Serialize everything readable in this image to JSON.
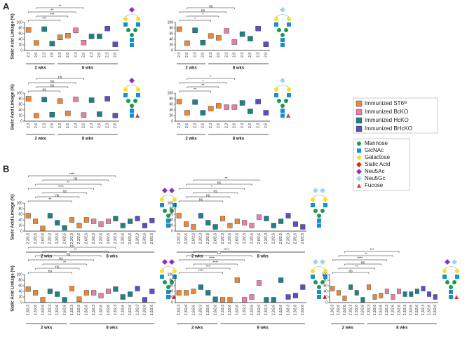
{
  "panel_labels": [
    "A",
    "B"
  ],
  "legend": [
    {
      "name": "Immunized ST6ᴳ",
      "color": "#e8883a"
    },
    {
      "name": "Immunized BcKO",
      "color": "#e67fa8"
    },
    {
      "name": "Immunized HcKO",
      "color": "#1f8087"
    },
    {
      "name": "Immunized BHcKO",
      "color": "#5a4fc2"
    }
  ],
  "glycan_legend": [
    {
      "name": "Mannose",
      "color": "#1a9a4a",
      "shape": "circle"
    },
    {
      "name": "GlcNAc",
      "color": "#1a8fd0",
      "shape": "square"
    },
    {
      "name": "Galactose",
      "color": "#f5e31a",
      "shape": "circle"
    },
    {
      "name": "Sialic Acid",
      "color": "#c0392b",
      "shape": "diamond"
    },
    {
      "name": "Neu5Ac",
      "color": "#8e2fc4",
      "shape": "diamond"
    },
    {
      "name": "Neu5Gc",
      "color": "#9fd4ee",
      "shape": "diamond"
    },
    {
      "name": "Fucose",
      "color": "#d63a3a",
      "shape": "triangle"
    }
  ],
  "chart_data": [
    {
      "type": "box",
      "ylabel": "Sialic Acid Linkage (%)",
      "group_labels": [
        "2 wks",
        "8 wks"
      ],
      "categories": [
        "2,3",
        "2,6",
        "2,3",
        "2,6",
        "2,3",
        "2,6",
        "2,3",
        "2,6",
        "2,3",
        "2,6",
        "2,3",
        "2,6"
      ],
      "colors": [
        "#e8883a",
        "#e8883a",
        "#1f8087",
        "#1f8087",
        "#e8883a",
        "#e8883a",
        "#e67fa8",
        "#e67fa8",
        "#1f8087",
        "#1f8087",
        "#5a4fc2",
        "#5a4fc2"
      ],
      "values": [
        73,
        27,
        76,
        24,
        47,
        53,
        72,
        28,
        50,
        50,
        78,
        22
      ],
      "comparisons": [
        "**",
        "**",
        "***",
        "***"
      ],
      "ylim": [
        0,
        100
      ],
      "yticks": [
        0,
        20,
        40,
        60,
        80,
        100
      ]
    },
    {
      "type": "box",
      "group_labels": [
        "2 wks",
        "8 wks"
      ],
      "categories": [
        "2,3",
        "2,6",
        "2,3",
        "2,6",
        "2,3",
        "2,6",
        "2,3",
        "2,6",
        "2,3",
        "2,6",
        "2,3",
        "2,6"
      ],
      "colors": [
        "#e8883a",
        "#e8883a",
        "#1f8087",
        "#1f8087",
        "#e8883a",
        "#e8883a",
        "#e67fa8",
        "#e67fa8",
        "#1f8087",
        "#1f8087",
        "#5a4fc2",
        "#5a4fc2"
      ],
      "values": [
        76,
        26,
        72,
        28,
        52,
        45,
        70,
        30,
        58,
        42,
        78,
        22
      ],
      "comparisons": [
        "ns",
        "ns",
        "*",
        "*"
      ],
      "ylim": [
        0,
        100
      ],
      "yticks": [
        0,
        20,
        40,
        60,
        80,
        100
      ]
    },
    {
      "type": "box",
      "ylabel": "Sialic Acid Linkage (%)",
      "group_labels": [
        "2 wks",
        "8 wks"
      ],
      "categories": [
        "2,3",
        "2,6",
        "2,3",
        "2,6",
        "2,3",
        "2,6",
        "2,3",
        "2,6",
        "2,3",
        "2,6",
        "2,3",
        "2,6"
      ],
      "colors": [
        "#e8883a",
        "#e8883a",
        "#1f8087",
        "#1f8087",
        "#e8883a",
        "#e8883a",
        "#e67fa8",
        "#e67fa8",
        "#1f8087",
        "#1f8087",
        "#5a4fc2",
        "#5a4fc2"
      ],
      "values": [
        80,
        20,
        77,
        23,
        72,
        28,
        78,
        22,
        75,
        25,
        80,
        20
      ],
      "comparisons": [
        "ns",
        "ns",
        "ns",
        "ns"
      ],
      "ylim": [
        0,
        100
      ],
      "yticks": [
        0,
        20,
        40,
        60,
        80,
        100
      ]
    },
    {
      "type": "box",
      "group_labels": [
        "2 wks",
        "8 wks"
      ],
      "categories": [
        "2,3",
        "2,6",
        "2,3",
        "2,6",
        "2,3",
        "2,6",
        "2,3",
        "2,6",
        "2,3",
        "2,6",
        "2,3",
        "2,6"
      ],
      "colors": [
        "#e8883a",
        "#e8883a",
        "#1f8087",
        "#1f8087",
        "#e8883a",
        "#e8883a",
        "#e67fa8",
        "#e67fa8",
        "#1f8087",
        "#1f8087",
        "#5a4fc2",
        "#5a4fc2"
      ],
      "values": [
        70,
        30,
        68,
        30,
        45,
        55,
        50,
        50,
        65,
        35,
        70,
        30
      ],
      "comparisons": [
        "*",
        "*",
        "**",
        "**"
      ],
      "ylim": [
        0,
        100
      ],
      "yticks": [
        0,
        20,
        40,
        60,
        80,
        100
      ]
    },
    {
      "type": "box",
      "ylabel": "Sialic Acid Linkage (%)",
      "group_labels": [
        "2 wks",
        "8 wks"
      ],
      "categories": [
        "2,3/2,3",
        "2,3/2,6",
        "2,6/2,6",
        "2,3/2,3",
        "2,3/2,6",
        "2,6/2,6",
        "2,3/2,3",
        "2,3/2,6",
        "2,6/2,6",
        "2,3/2,3",
        "2,3/2,6",
        "2,6/2,6",
        "2,3/2,3",
        "2,3/2,6",
        "2,6/2,6",
        "2,3/2,3",
        "2,3/2,6",
        "2,6/2,6"
      ],
      "colors": [
        "#e8883a",
        "#e8883a",
        "#e8883a",
        "#1f8087",
        "#1f8087",
        "#1f8087",
        "#e8883a",
        "#e8883a",
        "#e8883a",
        "#e67fa8",
        "#e67fa8",
        "#e67fa8",
        "#1f8087",
        "#1f8087",
        "#1f8087",
        "#5a4fc2",
        "#5a4fc2",
        "#5a4fc2"
      ],
      "values": [
        55,
        35,
        10,
        55,
        30,
        12,
        40,
        20,
        40,
        35,
        25,
        35,
        45,
        20,
        35,
        45,
        20,
        38
      ],
      "comparisons": [
        "****",
        "ns",
        "**",
        "****",
        "ns",
        "ns",
        "**"
      ],
      "ylim": [
        0,
        100
      ],
      "yticks": [
        0,
        20,
        40,
        60,
        80,
        100
      ]
    },
    {
      "type": "box",
      "group_labels": [
        "2 wks",
        "8 wks"
      ],
      "categories": [
        "2,3/2,3",
        "2,3/2,6",
        "2,6/2,6",
        "2,3/2,3",
        "2,3/2,6",
        "2,6/2,6",
        "2,3/2,3",
        "2,3/2,6",
        "2,6/2,6",
        "2,3/2,3",
        "2,3/2,6",
        "2,6/2,6",
        "2,3/2,3",
        "2,3/2,6",
        "2,6/2,6",
        "2,3/2,3",
        "2,3/2,6",
        "2,6/2,6"
      ],
      "colors": [
        "#e8883a",
        "#e8883a",
        "#e8883a",
        "#1f8087",
        "#1f8087",
        "#1f8087",
        "#e8883a",
        "#e8883a",
        "#e8883a",
        "#e67fa8",
        "#e67fa8",
        "#e67fa8",
        "#1f8087",
        "#1f8087",
        "#1f8087",
        "#5a4fc2",
        "#5a4fc2",
        "#5a4fc2"
      ],
      "values": [
        55,
        25,
        15,
        55,
        30,
        15,
        45,
        20,
        35,
        30,
        20,
        50,
        45,
        20,
        35,
        55,
        25,
        15
      ],
      "comparisons": [
        "**",
        "ns",
        "*",
        "ns",
        "ns",
        "ns"
      ],
      "ylim": [
        0,
        100
      ],
      "yticks": [
        0,
        20,
        40,
        60,
        80,
        100
      ]
    },
    {
      "type": "box",
      "ylabel": "Sialic Acid Linkage (%)",
      "group_labels": [
        "2 wks",
        "8 wks"
      ],
      "categories": [
        "2,3/2,3",
        "2,3/2,6",
        "2,6/2,6",
        "2,3/2,3",
        "2,3/2,6",
        "2,6/2,6",
        "2,3/2,3",
        "2,3/2,6",
        "2,6/2,6",
        "2,3/2,3",
        "2,3/2,6",
        "2,6/2,6",
        "2,3/2,3",
        "2,3/2,6",
        "2,6/2,6",
        "2,3/2,3",
        "2,3/2,6",
        "2,6/2,6"
      ],
      "colors": [
        "#e8883a",
        "#e8883a",
        "#e8883a",
        "#1f8087",
        "#1f8087",
        "#1f8087",
        "#e8883a",
        "#e8883a",
        "#e8883a",
        "#e67fa8",
        "#e67fa8",
        "#e67fa8",
        "#1f8087",
        "#1f8087",
        "#1f8087",
        "#5a4fc2",
        "#5a4fc2",
        "#5a4fc2"
      ],
      "values": [
        48,
        35,
        10,
        40,
        30,
        10,
        50,
        12,
        35,
        35,
        25,
        40,
        48,
        20,
        30,
        50,
        10,
        40
      ],
      "comparisons": [
        "ns",
        "**",
        "ns",
        "ns",
        "**",
        "ns",
        "ns"
      ],
      "ylim": [
        0,
        100
      ],
      "yticks": [
        0,
        20,
        40,
        60,
        80,
        100
      ]
    },
    {
      "type": "box",
      "group_labels": [
        "2 wks",
        "8 wks"
      ],
      "categories": [
        "2,3/2,3",
        "2,3/2,6",
        "2,6/2,6",
        "2,3/2,3",
        "2,3/2,6",
        "2,6/2,6",
        "2,3/2,3",
        "2,3/2,6",
        "2,6/2,6",
        "2,3/2,3",
        "2,3/2,6",
        "2,6/2,6",
        "2,3/2,3",
        "2,3/2,6",
        "2,6/2,6",
        "2,3/2,3",
        "2,3/2,6",
        "2,6/2,6"
      ],
      "colors": [
        "#e8883a",
        "#e8883a",
        "#e8883a",
        "#1f8087",
        "#1f8087",
        "#1f8087",
        "#e8883a",
        "#e8883a",
        "#e8883a",
        "#e67fa8",
        "#e67fa8",
        "#e67fa8",
        "#1f8087",
        "#1f8087",
        "#1f8087",
        "#5a4fc2",
        "#5a4fc2",
        "#5a4fc2"
      ],
      "values": [
        35,
        35,
        40,
        55,
        35,
        12,
        10,
        10,
        80,
        10,
        20,
        70,
        10,
        10,
        80,
        20,
        25,
        55
      ],
      "comparisons": [
        "****",
        "***",
        "****",
        "****",
        "***",
        "****"
      ],
      "ylim": [
        0,
        100
      ],
      "yticks": [
        0,
        20,
        40,
        60,
        80,
        100
      ]
    },
    {
      "type": "box",
      "group_labels": [
        "2 wks",
        "8 wks"
      ],
      "categories": [
        "2,3/2,3",
        "2,3/2,6",
        "2,6/2,6",
        "2,3/2,3",
        "2,3/2,6",
        "2,6/2,6",
        "2,3/2,3",
        "2,3/2,6",
        "2,6/2,6",
        "2,3/2,3",
        "2,3/2,6",
        "2,6/2,6",
        "2,3/2,3",
        "2,3/2,6",
        "2,6/2,6",
        "2,3/2,3",
        "2,3/2,6",
        "2,6/2,6"
      ],
      "colors": [
        "#e8883a",
        "#e8883a",
        "#e8883a",
        "#1f8087",
        "#1f8087",
        "#1f8087",
        "#e8883a",
        "#e8883a",
        "#e8883a",
        "#e67fa8",
        "#e67fa8",
        "#e67fa8",
        "#1f8087",
        "#1f8087",
        "#1f8087",
        "#5a4fc2",
        "#5a4fc2",
        "#5a4fc2"
      ],
      "values": [
        50,
        35,
        15,
        55,
        35,
        10,
        55,
        20,
        25,
        40,
        20,
        40,
        30,
        30,
        40,
        50,
        30,
        20
      ],
      "comparisons": [
        "***",
        "**",
        "****",
        "ns",
        "**",
        "ns"
      ],
      "ylim": [
        0,
        100
      ],
      "yticks": [
        0,
        20,
        40,
        60,
        80,
        100
      ]
    }
  ]
}
